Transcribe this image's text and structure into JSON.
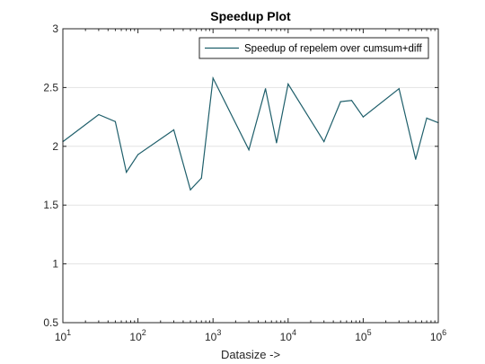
{
  "chart_data": {
    "type": "line",
    "title": "Speedup Plot",
    "xlabel": "Datasize ->",
    "ylabel": "",
    "xscale": "log",
    "xlim": [
      10,
      1000000
    ],
    "ylim": [
      0.5,
      3
    ],
    "grid": "horizontal",
    "legend_position": "top-right",
    "x_ticks": [
      {
        "value": 10,
        "base": "10",
        "exp": "1"
      },
      {
        "value": 100,
        "base": "10",
        "exp": "2"
      },
      {
        "value": 1000,
        "base": "10",
        "exp": "3"
      },
      {
        "value": 10000,
        "base": "10",
        "exp": "4"
      },
      {
        "value": 100000,
        "base": "10",
        "exp": "5"
      },
      {
        "value": 1000000,
        "base": "10",
        "exp": "6"
      }
    ],
    "y_ticks": [
      {
        "value": 0.5,
        "label": "0.5"
      },
      {
        "value": 1,
        "label": "1"
      },
      {
        "value": 1.5,
        "label": "1.5"
      },
      {
        "value": 2,
        "label": "2"
      },
      {
        "value": 2.5,
        "label": "2.5"
      },
      {
        "value": 3,
        "label": "3"
      }
    ],
    "series": [
      {
        "name": "Speedup of repelem over cumsum+diff",
        "color": "#1f5f6b",
        "x": [
          10,
          30,
          50,
          70,
          100,
          300,
          500,
          700,
          1000,
          3000,
          5000,
          7000,
          10000,
          30000,
          50000,
          70000,
          100000,
          300000,
          500000,
          700000,
          1000000
        ],
        "y": [
          2.04,
          2.27,
          2.21,
          1.78,
          1.93,
          2.14,
          1.63,
          1.73,
          2.58,
          1.97,
          2.49,
          2.03,
          2.53,
          2.04,
          2.38,
          2.39,
          2.25,
          2.49,
          1.89,
          2.24,
          2.2
        ]
      }
    ]
  }
}
